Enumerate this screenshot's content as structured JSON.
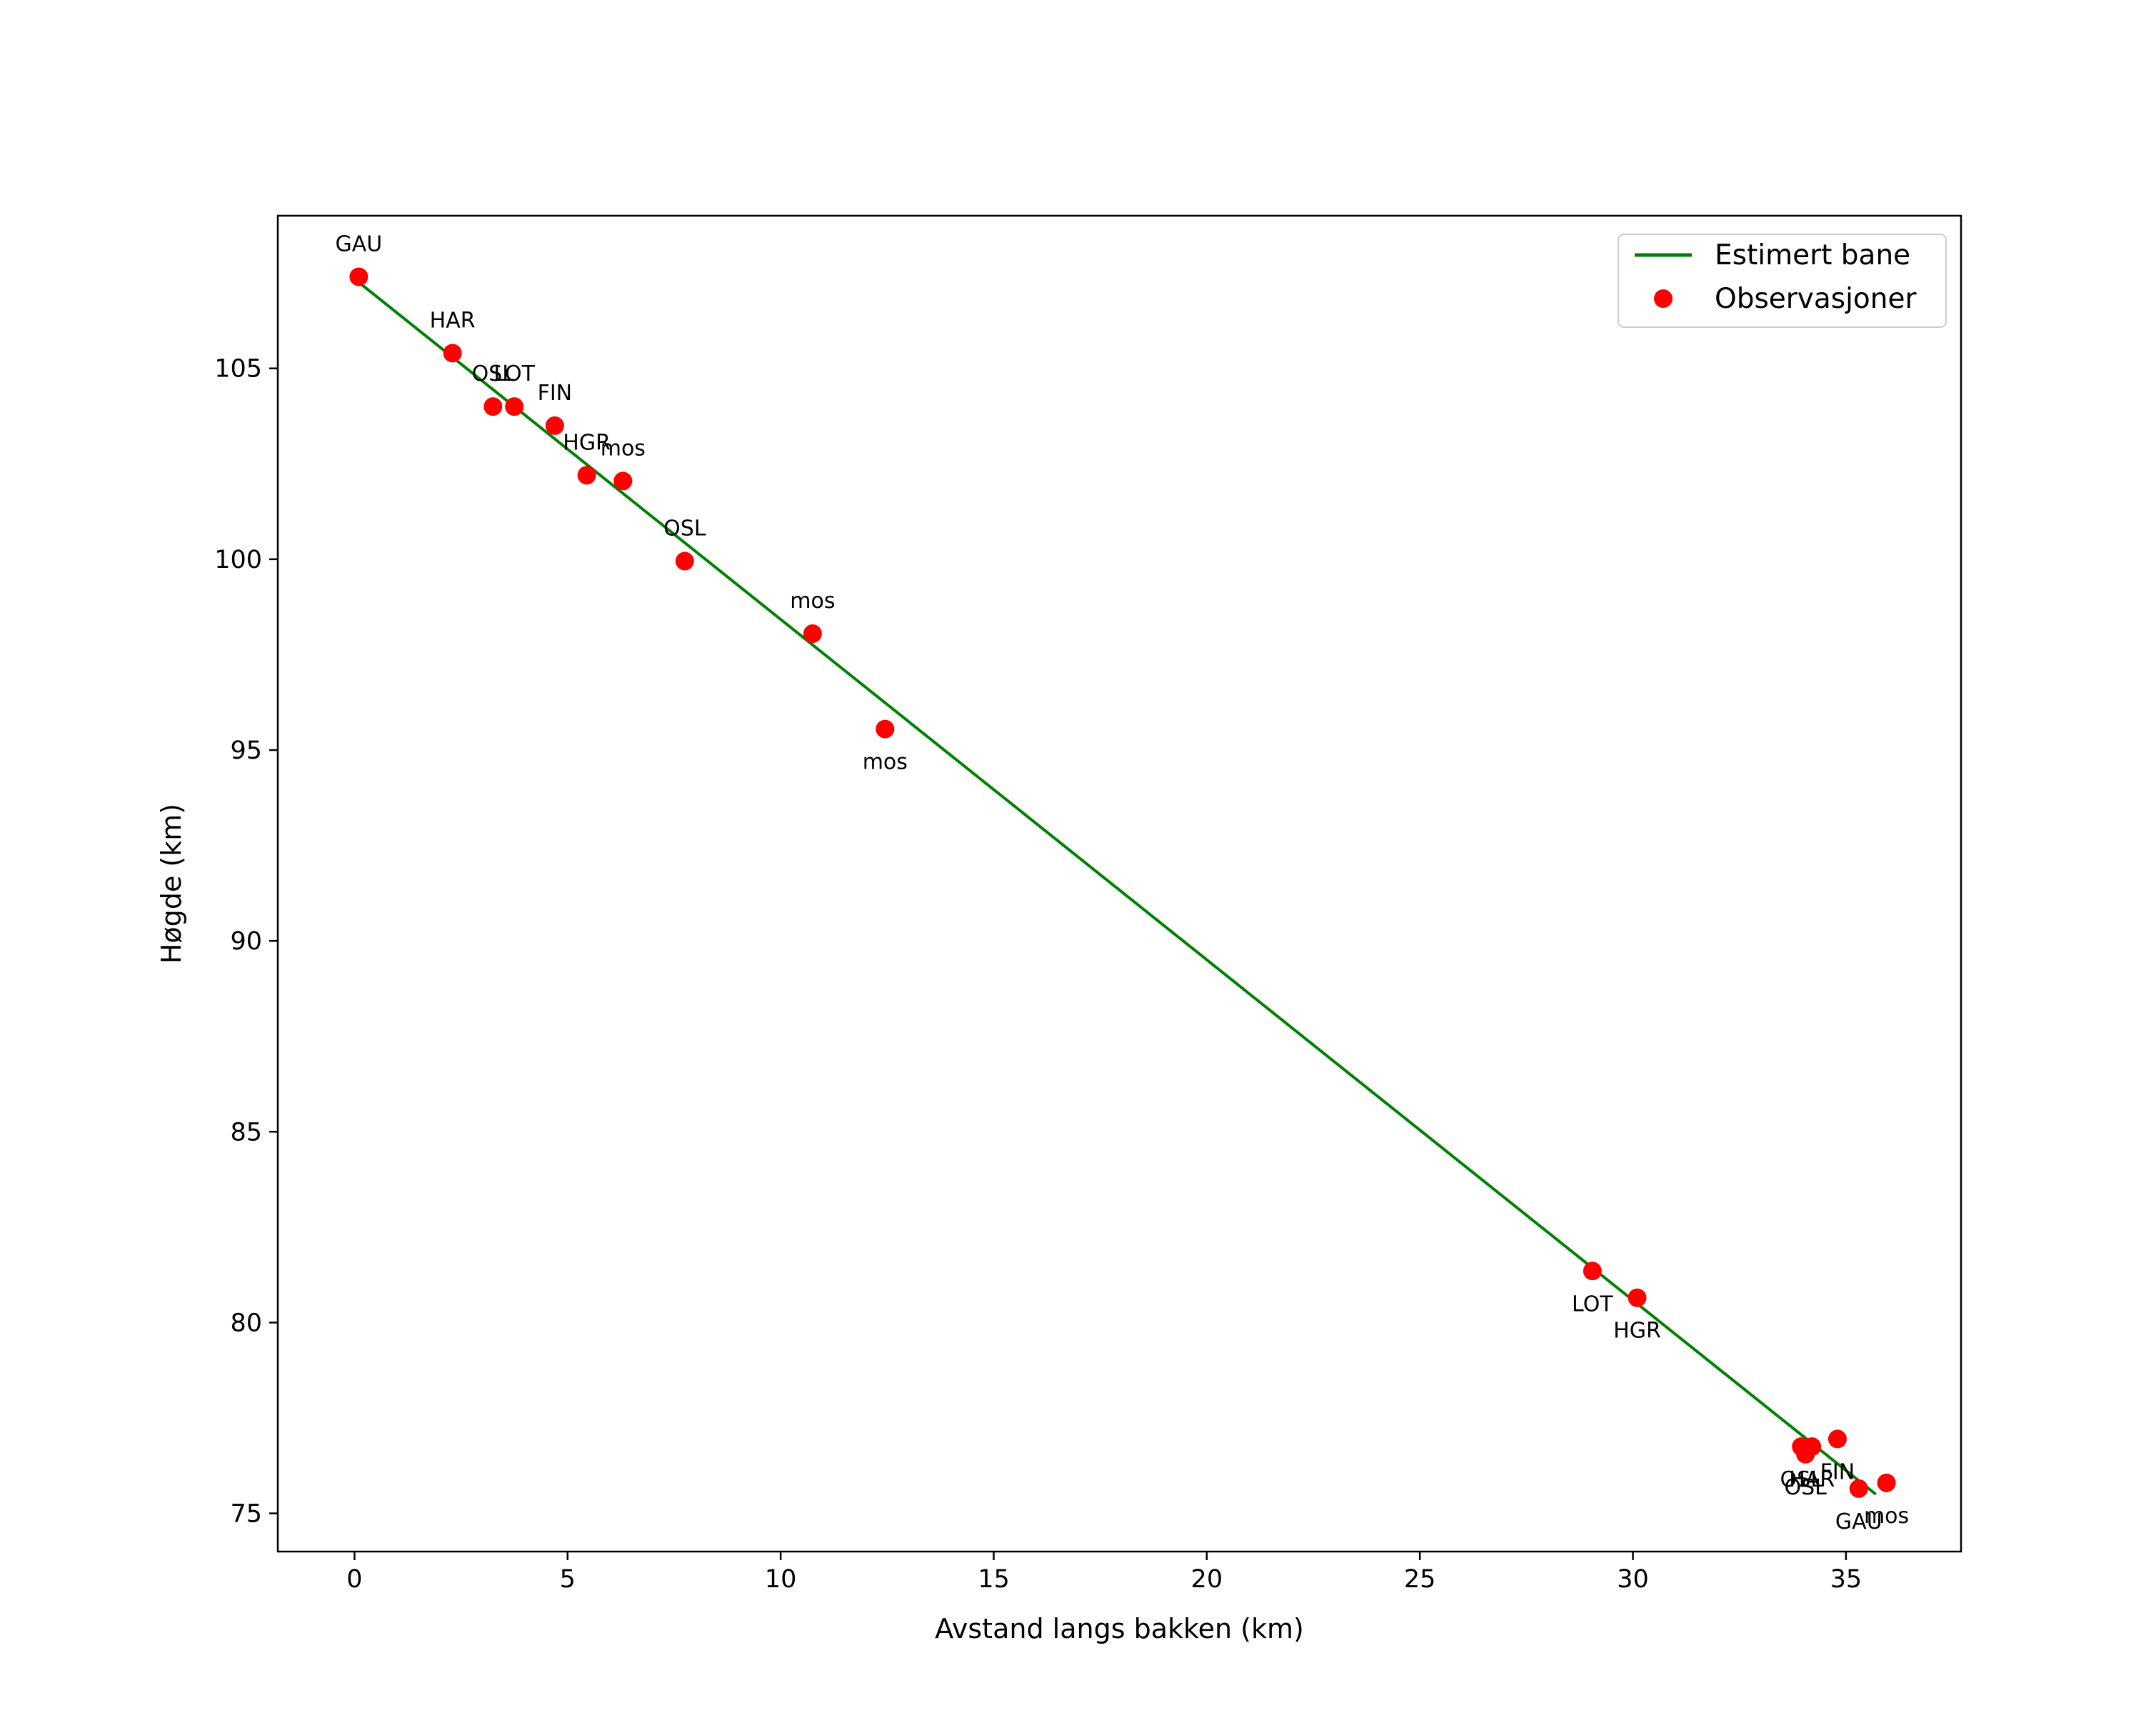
{
  "chart_data": {
    "type": "scatter",
    "title": "",
    "xlabel": "Avstand langs bakken (km)",
    "ylabel": "Høgde (km)",
    "xlim": [
      -1.8,
      37.7
    ],
    "ylim": [
      74.0,
      109.0
    ],
    "xticks": [
      0,
      5,
      10,
      15,
      20,
      25,
      30,
      35
    ],
    "yticks": [
      75,
      80,
      85,
      90,
      95,
      100,
      105
    ],
    "grid": false,
    "legend_position": "top-right",
    "colors": {
      "line": "#008000",
      "points": "#ff0000",
      "axes": "#000000"
    },
    "series": [
      {
        "name": "Estimert bane",
        "kind": "line",
        "x": [
          0.05,
          35.7
        ],
        "y": [
          107.3,
          75.5
        ]
      },
      {
        "name": "Observasjoner",
        "kind": "points",
        "points": [
          {
            "x": 0.1,
            "y": 107.4,
            "label": "GAU",
            "label_pos": "above"
          },
          {
            "x": 2.3,
            "y": 105.4,
            "label": "HAR",
            "label_pos": "above"
          },
          {
            "x": 3.25,
            "y": 104.0,
            "label": "OSL",
            "label_pos": "above"
          },
          {
            "x": 3.75,
            "y": 104.0,
            "label": "LOT",
            "label_pos": "above"
          },
          {
            "x": 4.7,
            "y": 103.5,
            "label": "FIN",
            "label_pos": "above"
          },
          {
            "x": 5.45,
            "y": 102.2,
            "label": "HGR",
            "label_pos": "above"
          },
          {
            "x": 6.3,
            "y": 102.05,
            "label": "mos",
            "label_pos": "above"
          },
          {
            "x": 7.75,
            "y": 99.95,
            "label": "OSL",
            "label_pos": "above"
          },
          {
            "x": 10.75,
            "y": 98.05,
            "label": "mos",
            "label_pos": "above"
          },
          {
            "x": 12.45,
            "y": 95.55,
            "label": "mos",
            "label_pos": "below"
          },
          {
            "x": 29.05,
            "y": 81.35,
            "label": "LOT",
            "label_pos": "below"
          },
          {
            "x": 30.1,
            "y": 80.65,
            "label": "HGR",
            "label_pos": "below"
          },
          {
            "x": 33.95,
            "y": 76.75,
            "label": "OSL",
            "label_pos": "below"
          },
          {
            "x": 34.2,
            "y": 76.75,
            "label": "HAR",
            "label_pos": "below"
          },
          {
            "x": 34.05,
            "y": 76.55,
            "label": "OSL",
            "label_pos": "below"
          },
          {
            "x": 34.8,
            "y": 76.95,
            "label": "FIN",
            "label_pos": "below"
          },
          {
            "x": 35.3,
            "y": 75.65,
            "label": "GAU",
            "label_pos": "below"
          },
          {
            "x": 35.95,
            "y": 75.8,
            "label": "mos",
            "label_pos": "below"
          }
        ]
      }
    ]
  }
}
